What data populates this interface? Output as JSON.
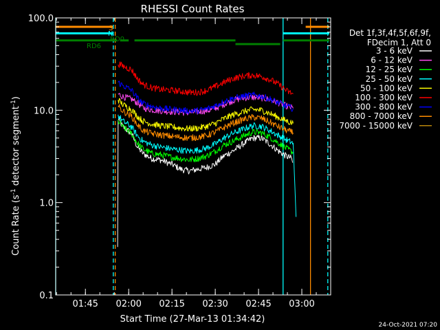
{
  "chart_data": {
    "type": "line",
    "title": "RHESSI Count Rates",
    "xlabel": "Start Time (27-Mar-13 01:34:42)",
    "ylabel_parts": [
      "Count Rate (s",
      "-1",
      " detector segment",
      "-1",
      ")"
    ],
    "y_scale": "log",
    "ylim": [
      0.1,
      100.0
    ],
    "y_ticks": [
      {
        "value": 0.1,
        "label": "0.1"
      },
      {
        "value": 1.0,
        "label": "1.0"
      },
      {
        "value": 10.0,
        "label": "10.0"
      },
      {
        "value": 100.0,
        "label": "100.0"
      }
    ],
    "xlim": [
      "01:34:42",
      "03:10:00"
    ],
    "x_ticks": [
      "01:45",
      "02:00",
      "02:15",
      "02:30",
      "02:45",
      "03:00"
    ],
    "legend_header": [
      "Det 1f,3f,4f,5f,6f,9f,",
      "FDecim 1, Att 0"
    ],
    "series": [
      {
        "name": "3 - 6 keV",
        "color": "#ffffff",
        "values": [
          [
            "01:56:10",
            0.33
          ],
          [
            "01:56:20",
            8.0
          ],
          [
            "01:58:00",
            6.6
          ],
          [
            "02:01:00",
            5.6
          ],
          [
            "02:03:00",
            4.0
          ],
          [
            "02:05:00",
            3.4
          ],
          [
            "02:08:00",
            3.0
          ],
          [
            "02:11:00",
            2.9
          ],
          [
            "02:15:00",
            2.6
          ],
          [
            "02:18:00",
            2.3
          ],
          [
            "02:21:00",
            2.2
          ],
          [
            "02:24:00",
            2.3
          ],
          [
            "02:27:00",
            2.4
          ],
          [
            "02:30:00",
            2.6
          ],
          [
            "02:33:00",
            3.2
          ],
          [
            "02:36:00",
            3.6
          ],
          [
            "02:40:00",
            4.4
          ],
          [
            "02:43:00",
            5.0
          ],
          [
            "02:46:00",
            5.0
          ],
          [
            "02:49:00",
            4.3
          ],
          [
            "02:52:00",
            3.6
          ],
          [
            "02:54:30",
            3.2
          ],
          [
            "02:56:30",
            3.0
          ],
          [
            "02:56:50",
            2.7
          ]
        ]
      },
      {
        "name": "6 - 12 keV",
        "color": "#ff4af0",
        "values": [
          [
            "01:56:20",
            15.0
          ],
          [
            "01:58:00",
            14.0
          ],
          [
            "02:01:00",
            13.2
          ],
          [
            "02:03:00",
            12.0
          ],
          [
            "02:05:00",
            10.6
          ],
          [
            "02:08:00",
            10.1
          ],
          [
            "02:12:00",
            9.8
          ],
          [
            "02:16:00",
            9.6
          ],
          [
            "02:20:00",
            9.4
          ],
          [
            "02:24:00",
            9.6
          ],
          [
            "02:28:00",
            10.0
          ],
          [
            "02:31:00",
            10.8
          ],
          [
            "02:34:00",
            12.0
          ],
          [
            "02:37:00",
            13.0
          ],
          [
            "02:40:00",
            13.6
          ],
          [
            "02:43:00",
            13.8
          ],
          [
            "02:46:00",
            13.6
          ],
          [
            "02:49:00",
            13.0
          ],
          [
            "02:52:00",
            12.0
          ],
          [
            "02:55:00",
            11.0
          ],
          [
            "02:57:00",
            10.5
          ]
        ]
      },
      {
        "name": "12 - 25 keV",
        "color": "#00ff00",
        "values": [
          [
            "01:56:20",
            7.6
          ],
          [
            "01:58:00",
            6.6
          ],
          [
            "02:01:00",
            5.6
          ],
          [
            "02:03:00",
            4.4
          ],
          [
            "02:05:00",
            3.8
          ],
          [
            "02:08:00",
            3.4
          ],
          [
            "02:11:00",
            3.3
          ],
          [
            "02:15:00",
            3.1
          ],
          [
            "02:18:00",
            3.0
          ],
          [
            "02:21:00",
            2.9
          ],
          [
            "02:24:00",
            3.0
          ],
          [
            "02:27:00",
            3.2
          ],
          [
            "02:30:00",
            3.6
          ],
          [
            "02:33:00",
            4.2
          ],
          [
            "02:36:00",
            4.6
          ],
          [
            "02:40:00",
            5.3
          ],
          [
            "02:43:00",
            5.8
          ],
          [
            "02:46:00",
            5.7
          ],
          [
            "02:49:00",
            5.1
          ],
          [
            "02:52:00",
            4.4
          ],
          [
            "02:55:00",
            3.8
          ],
          [
            "02:57:00",
            3.5
          ]
        ]
      },
      {
        "name": "25 - 50 keV",
        "color": "#00ffff",
        "values": [
          [
            "01:56:20",
            8.8
          ],
          [
            "01:58:00",
            7.6
          ],
          [
            "02:01:00",
            6.6
          ],
          [
            "02:03:00",
            5.3
          ],
          [
            "02:05:00",
            4.6
          ],
          [
            "02:08:00",
            4.2
          ],
          [
            "02:11:00",
            4.0
          ],
          [
            "02:15:00",
            3.8
          ],
          [
            "02:18:00",
            3.7
          ],
          [
            "02:21:00",
            3.6
          ],
          [
            "02:24:00",
            3.7
          ],
          [
            "02:27:00",
            3.9
          ],
          [
            "02:30:00",
            4.3
          ],
          [
            "02:33:00",
            5.0
          ],
          [
            "02:36:00",
            5.6
          ],
          [
            "02:40:00",
            6.3
          ],
          [
            "02:43:00",
            6.8
          ],
          [
            "02:46:00",
            6.7
          ],
          [
            "02:49:00",
            6.0
          ],
          [
            "02:52:00",
            5.3
          ],
          [
            "02:55:00",
            4.7
          ],
          [
            "02:57:00",
            4.4
          ],
          [
            "02:58:00",
            0.7
          ]
        ]
      },
      {
        "name": "50 - 100 keV",
        "color": "#ffff00",
        "values": [
          [
            "01:56:20",
            13.0
          ],
          [
            "01:58:00",
            11.5
          ],
          [
            "02:01:00",
            10.2
          ],
          [
            "02:03:00",
            8.6
          ],
          [
            "02:05:00",
            7.6
          ],
          [
            "02:08:00",
            7.1
          ],
          [
            "02:11:00",
            6.8
          ],
          [
            "02:15:00",
            6.6
          ],
          [
            "02:18:00",
            6.4
          ],
          [
            "02:21:00",
            6.3
          ],
          [
            "02:24:00",
            6.4
          ],
          [
            "02:27:00",
            6.7
          ],
          [
            "02:30:00",
            7.2
          ],
          [
            "02:33:00",
            8.1
          ],
          [
            "02:36:00",
            8.9
          ],
          [
            "02:40:00",
            9.7
          ],
          [
            "02:43:00",
            10.2
          ],
          [
            "02:46:00",
            10.0
          ],
          [
            "02:49:00",
            9.2
          ],
          [
            "02:52:00",
            8.3
          ],
          [
            "02:55:00",
            7.6
          ],
          [
            "02:57:00",
            7.2
          ]
        ]
      },
      {
        "name": "100 - 300 keV",
        "color": "#ff0000",
        "values": [
          [
            "01:56:20",
            32.0
          ],
          [
            "01:58:00",
            30.0
          ],
          [
            "02:01:00",
            27.5
          ],
          [
            "02:03:00",
            22.0
          ],
          [
            "02:05:00",
            19.0
          ],
          [
            "02:08:00",
            17.5
          ],
          [
            "02:11:00",
            16.8
          ],
          [
            "02:15:00",
            16.4
          ],
          [
            "02:18:00",
            16.0
          ],
          [
            "02:21:00",
            15.6
          ],
          [
            "02:24:00",
            15.6
          ],
          [
            "02:27:00",
            16.4
          ],
          [
            "02:30:00",
            18.0
          ],
          [
            "02:33:00",
            20.0
          ],
          [
            "02:36:00",
            22.0
          ],
          [
            "02:40:00",
            23.5
          ],
          [
            "02:43:00",
            24.0
          ],
          [
            "02:46:00",
            23.2
          ],
          [
            "02:49:00",
            21.5
          ],
          [
            "02:52:00",
            19.0
          ],
          [
            "02:55:00",
            16.0
          ],
          [
            "02:57:00",
            15.0
          ]
        ]
      },
      {
        "name": "300 - 800 keV",
        "color": "#0000ff",
        "values": [
          [
            "01:56:20",
            20.0
          ],
          [
            "01:58:00",
            18.5
          ],
          [
            "02:01:00",
            16.5
          ],
          [
            "02:03:00",
            13.5
          ],
          [
            "02:05:00",
            11.8
          ],
          [
            "02:08:00",
            11.0
          ],
          [
            "02:11:00",
            10.5
          ],
          [
            "02:15:00",
            10.2
          ],
          [
            "02:18:00",
            10.0
          ],
          [
            "02:21:00",
            9.8
          ],
          [
            "02:24:00",
            9.9
          ],
          [
            "02:27:00",
            10.3
          ],
          [
            "02:30:00",
            11.2
          ],
          [
            "02:33:00",
            12.4
          ],
          [
            "02:36:00",
            13.4
          ],
          [
            "02:40:00",
            14.2
          ],
          [
            "02:43:00",
            14.6
          ],
          [
            "02:46:00",
            14.2
          ],
          [
            "02:49:00",
            13.2
          ],
          [
            "02:52:00",
            12.0
          ],
          [
            "02:55:00",
            11.0
          ],
          [
            "02:57:00",
            10.4
          ]
        ]
      },
      {
        "name": "800 - 7000 keV",
        "color": "#ff8c00",
        "values": [
          [
            "01:56:20",
            11.0
          ],
          [
            "01:58:00",
            9.8
          ],
          [
            "02:01:00",
            8.6
          ],
          [
            "02:03:00",
            7.0
          ],
          [
            "02:05:00",
            6.0
          ],
          [
            "02:08:00",
            5.6
          ],
          [
            "02:11:00",
            5.4
          ],
          [
            "02:15:00",
            5.2
          ],
          [
            "02:18:00",
            5.1
          ],
          [
            "02:21:00",
            5.0
          ],
          [
            "02:24:00",
            5.1
          ],
          [
            "02:27:00",
            5.3
          ],
          [
            "02:30:00",
            5.8
          ],
          [
            "02:33:00",
            6.5
          ],
          [
            "02:36:00",
            7.2
          ],
          [
            "02:40:00",
            8.0
          ],
          [
            "02:43:00",
            8.4
          ],
          [
            "02:46:00",
            8.2
          ],
          [
            "02:49:00",
            7.4
          ],
          [
            "02:52:00",
            6.6
          ],
          [
            "02:55:00",
            6.0
          ],
          [
            "02:57:00",
            5.7
          ]
        ]
      },
      {
        "name": "7000 - 15000 keV",
        "color": "#b8860b",
        "values": []
      }
    ],
    "attenuator_segments": [
      {
        "label": "S",
        "color": "#ff8c00",
        "y": 80.0,
        "x": [
          [
            "01:34:42",
            "01:54:30"
          ],
          [
            "03:01:20",
            "03:09:30"
          ]
        ]
      },
      {
        "label": "N",
        "color": "#00ffff",
        "y": 68.0,
        "x": [
          [
            "01:34:42",
            "01:54:30"
          ],
          [
            "02:53:30",
            "03:09:30"
          ]
        ]
      },
      {
        "label": "RD0",
        "color": "#008000",
        "y": 57.0,
        "x": [
          [
            "02:02:00",
            "02:37:00"
          ],
          [
            "02:53:30",
            "03:09:30"
          ]
        ]
      },
      {
        "label": "RD6",
        "color": "#008000",
        "y": 57.0,
        "x": [
          [
            "01:34:42",
            "01:56:00"
          ],
          [
            "01:57:00",
            "02:00:00"
          ]
        ]
      },
      {
        "label": "",
        "color": "#008000",
        "y": 52.0,
        "x": [
          [
            "02:37:00",
            "02:52:30"
          ]
        ]
      }
    ],
    "vertical_markers": [
      {
        "time": "01:34:42",
        "color": "#00ffff",
        "style": "solid"
      },
      {
        "time": "01:54:40",
        "color": "#00ffff",
        "style": "dashed"
      },
      {
        "time": "01:55:20",
        "color": "#ff8c00",
        "style": "dashed"
      },
      {
        "time": "02:53:30",
        "color": "#00ffff",
        "style": "solid"
      },
      {
        "time": "03:03:00",
        "color": "#ff8c00",
        "style": "solid"
      },
      {
        "time": "03:09:00",
        "color": "#00ffff",
        "style": "dashed"
      }
    ]
  },
  "footer": {
    "date": "24-Oct-2021 07:20"
  }
}
